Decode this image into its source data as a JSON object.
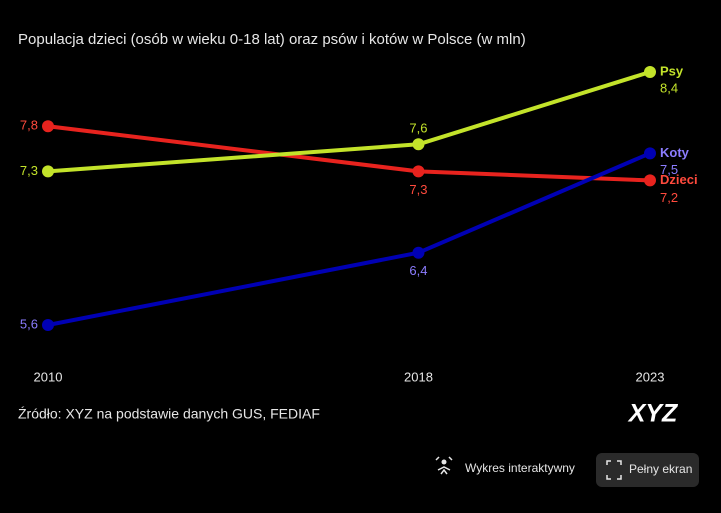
{
  "chart_data": {
    "type": "line",
    "title": "Populacja dzieci (osób w wieku 0-18 lat) oraz psów i kotów w Polsce (w mln)",
    "x": [
      2010,
      2018,
      2023
    ],
    "xlim": [
      2010,
      2023
    ],
    "xticks": [
      2010,
      2018,
      2023
    ],
    "ylim": [
      5.6,
      8.4
    ],
    "series": [
      {
        "name": "Dzieci",
        "color": "#e8231e",
        "label_color": "#ff4a3d",
        "values": [
          7.8,
          7.3,
          7.2
        ],
        "value_labels": [
          "7,8",
          "7,3",
          "7,2"
        ]
      },
      {
        "name": "Psy",
        "color": "#c3e32a",
        "label_color": "#c3e32a",
        "values": [
          7.3,
          7.6,
          8.4
        ],
        "value_labels": [
          "7,3",
          "7,6",
          "8,4"
        ]
      },
      {
        "name": "Koty",
        "color": "#0000b4",
        "label_color": "#8c7dff",
        "values": [
          5.6,
          6.4,
          7.5
        ],
        "value_labels": [
          "5,6",
          "6,4",
          "7,5"
        ]
      }
    ],
    "source": "Źródło: XYZ na podstawie danych GUS, FEDIAF"
  },
  "logo": "XYZ",
  "controls": {
    "interactive": "Wykres interaktywny",
    "fullscreen": "Pełny ekran"
  }
}
